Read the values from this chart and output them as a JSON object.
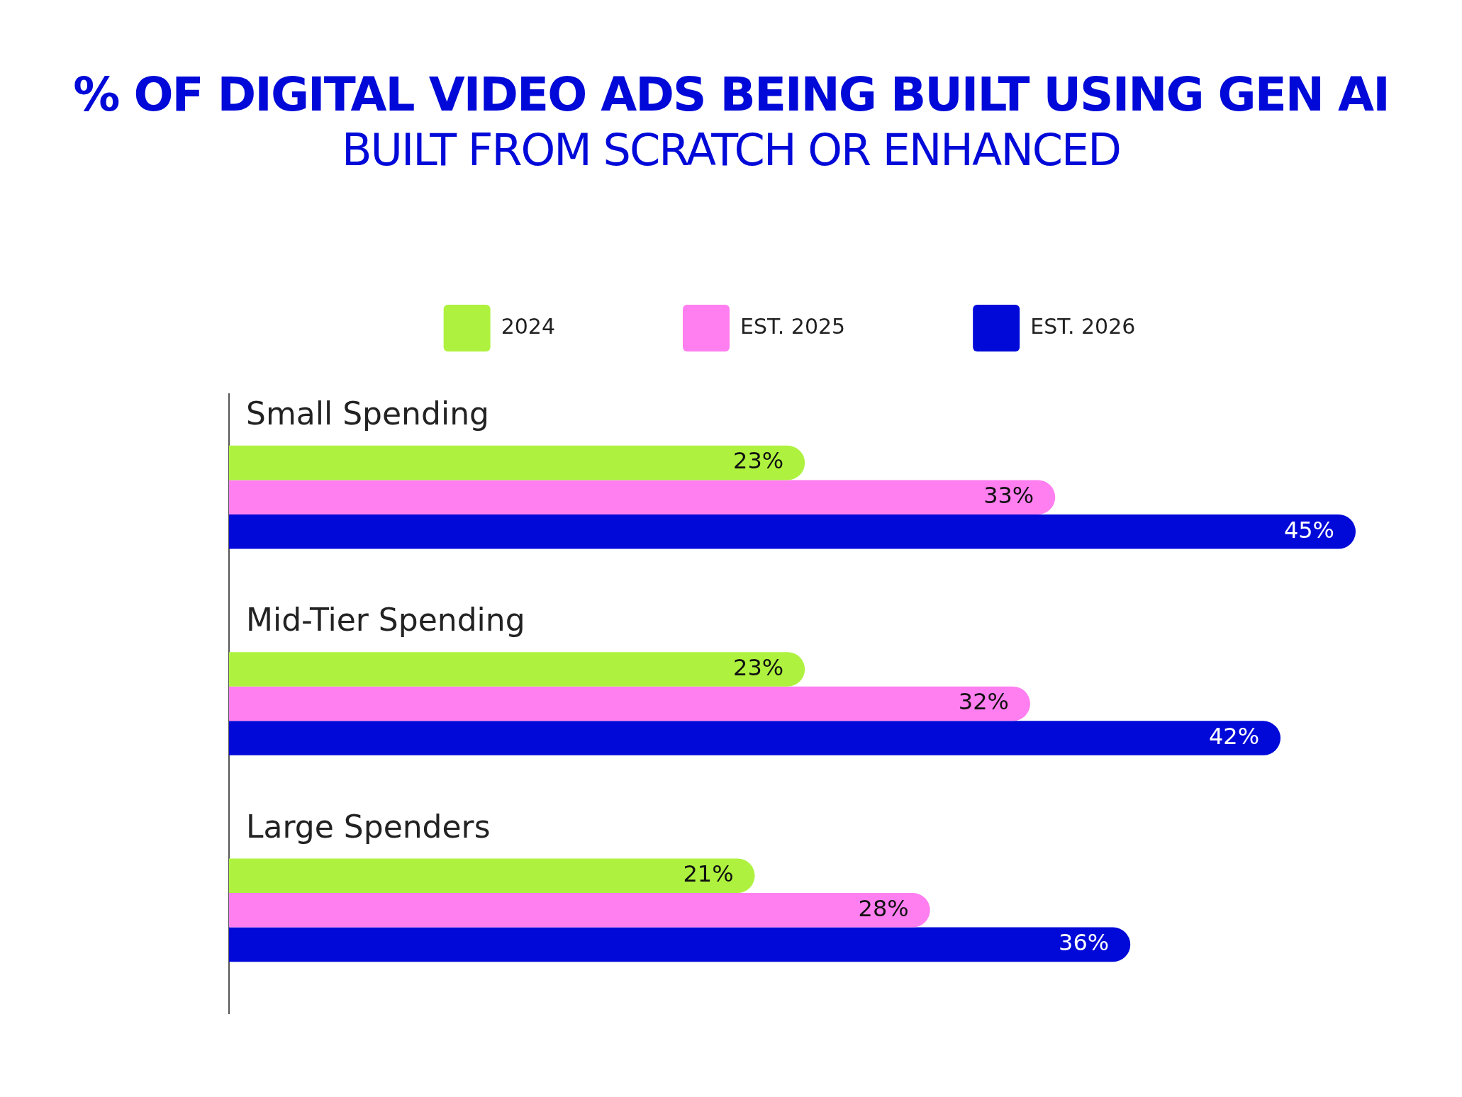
{
  "chart_data": {
    "type": "bar",
    "orientation": "horizontal",
    "title": "% OF DIGITAL VIDEO ADS BEING BUILT USING GEN AI",
    "subtitle": "BUILT FROM SCRATCH OR ENHANCED",
    "categories": [
      "Small Spending",
      "Mid-Tier Spending",
      "Large Spenders"
    ],
    "series": [
      {
        "name": "2024",
        "color": "#aef23f",
        "values": [
          23,
          23,
          21
        ],
        "value_labels": [
          "23%",
          "23%",
          "21%"
        ]
      },
      {
        "name": "EST. 2025",
        "color": "#ff7ff0",
        "values": [
          33,
          32,
          28
        ],
        "value_labels": [
          "33%",
          "32%",
          "28%"
        ]
      },
      {
        "name": "EST. 2026",
        "color": "#0009d8",
        "values": [
          45,
          42,
          36
        ],
        "value_labels": [
          "45%",
          "42%",
          "36%"
        ]
      }
    ],
    "tick_labels": "y",
    "legend": "top"
  }
}
